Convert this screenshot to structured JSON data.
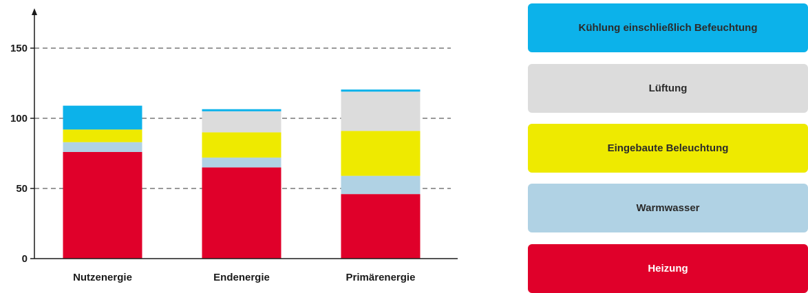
{
  "chart_data": {
    "type": "bar",
    "stacked": true,
    "categories": [
      "Nutzenergie",
      "Endenergie",
      "Primärenergie"
    ],
    "yticks": [
      0,
      50,
      100,
      150
    ],
    "ylim": [
      0,
      170
    ],
    "grid": "dashed horizontal at y ticks",
    "legend_position": "right",
    "series": [
      {
        "name": "Heizung",
        "color": "#e0002a",
        "values": [
          76,
          65,
          46
        ]
      },
      {
        "name": "Warmwasser",
        "color": "#b0d2e4",
        "values": [
          7,
          7,
          13
        ]
      },
      {
        "name": "Eingebaute Beleuchtung",
        "color": "#eeea00",
        "values": [
          9,
          18,
          32
        ]
      },
      {
        "name": "Lüftung",
        "color": "#dcdcdc",
        "values": [
          0,
          15,
          28
        ]
      },
      {
        "name": "Kühlung einschließlich Befeuchtung",
        "color": "#0cb2ea",
        "values": [
          17,
          1.5,
          1.5
        ]
      }
    ]
  },
  "legend": {
    "order": [
      4,
      3,
      2,
      1,
      0
    ]
  }
}
